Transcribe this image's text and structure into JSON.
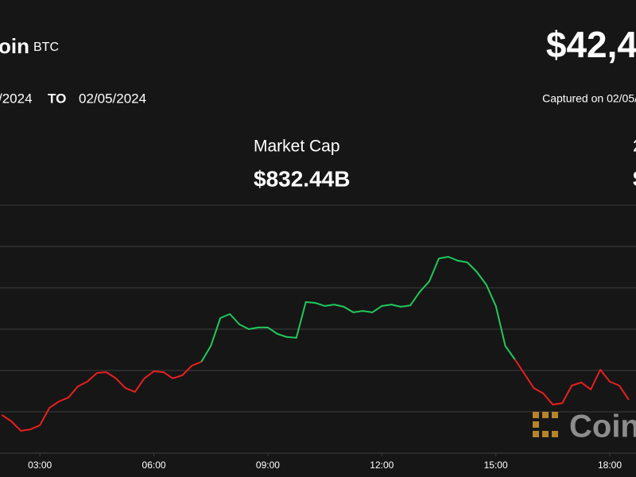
{
  "header": {
    "asset_name": "oin",
    "symbol": "BTC",
    "price": "$42,4",
    "date_from": "/2024",
    "date_separator": "TO",
    "date_to": "02/05/2024",
    "captured": "Captured on 02/05/",
    "stats": [
      {
        "label": "Market Cap",
        "value": "$832.44B"
      },
      {
        "label": "2",
        "value": "$"
      }
    ],
    "watermark": "Coin"
  },
  "chart_data": {
    "type": "line",
    "x": [
      2.0,
      2.25,
      2.5,
      2.75,
      3.0,
      3.25,
      3.5,
      3.75,
      4.0,
      4.25,
      4.5,
      4.75,
      5.0,
      5.25,
      5.5,
      5.75,
      6.0,
      6.25,
      6.5,
      6.75,
      7.0,
      7.25,
      7.5,
      7.75,
      8.0,
      8.25,
      8.5,
      8.75,
      9.0,
      9.25,
      9.5,
      9.75,
      10.0,
      10.25,
      10.5,
      10.75,
      11.0,
      11.25,
      11.5,
      11.75,
      12.0,
      12.25,
      12.5,
      12.75,
      13.0,
      13.25,
      13.5,
      13.75,
      14.0,
      14.25,
      14.5,
      14.75,
      15.0,
      15.25,
      15.5,
      15.75,
      16.0,
      16.25,
      16.5,
      16.75,
      17.0,
      17.25,
      17.5,
      17.75,
      18.0,
      18.25,
      18.5
    ],
    "series": [
      {
        "color": "#e8201f",
        "values": [
          42385,
          42354,
          42308,
          42315,
          42335,
          42419,
          42450,
          42469,
          42523,
          42546,
          42588,
          42592,
          42562,
          42515,
          42496,
          42562,
          42596,
          42592,
          42562,
          42577,
          42623,
          42642,
          null,
          null,
          null,
          null,
          null,
          null,
          null,
          null,
          null,
          null,
          null,
          null,
          null,
          null,
          null,
          null,
          null,
          null,
          null,
          null,
          null,
          null,
          null,
          null,
          null,
          null,
          null,
          null,
          null,
          null,
          null,
          null,
          42654,
          42585,
          42515,
          42489,
          42435,
          42442,
          42527,
          42542,
          42508,
          42604,
          42546,
          42527,
          42458
        ]
      },
      {
        "color": "#20c95c",
        "values": [
          null,
          null,
          null,
          null,
          null,
          null,
          null,
          null,
          null,
          null,
          null,
          null,
          null,
          null,
          null,
          null,
          null,
          null,
          null,
          null,
          null,
          42642,
          42719,
          42854,
          42873,
          42823,
          42800,
          42808,
          42808,
          42777,
          42762,
          42758,
          42931,
          42927,
          42912,
          42919,
          42908,
          42881,
          42888,
          42881,
          42912,
          42919,
          42908,
          42915,
          42981,
          43031,
          43142,
          43150,
          43131,
          43123,
          43077,
          43015,
          42912,
          42719,
          42654,
          null,
          null,
          null,
          null,
          null,
          null,
          null,
          null,
          null,
          null,
          null,
          null
        ]
      }
    ],
    "xlim": [
      1.95,
      18.69
    ],
    "xticks": [
      {
        "value": 3,
        "label": "03:00"
      },
      {
        "value": 6,
        "label": "06:00"
      },
      {
        "value": 9,
        "label": "09:00"
      },
      {
        "value": 12,
        "label": "12:00"
      },
      {
        "value": 15,
        "label": "15:00"
      },
      {
        "value": 18,
        "label": "18:00"
      }
    ],
    "ylim": [
      42200,
      43250
    ],
    "yticks": [
      42200,
      42400,
      42600,
      42800,
      43000,
      43200
    ],
    "grid": true
  }
}
